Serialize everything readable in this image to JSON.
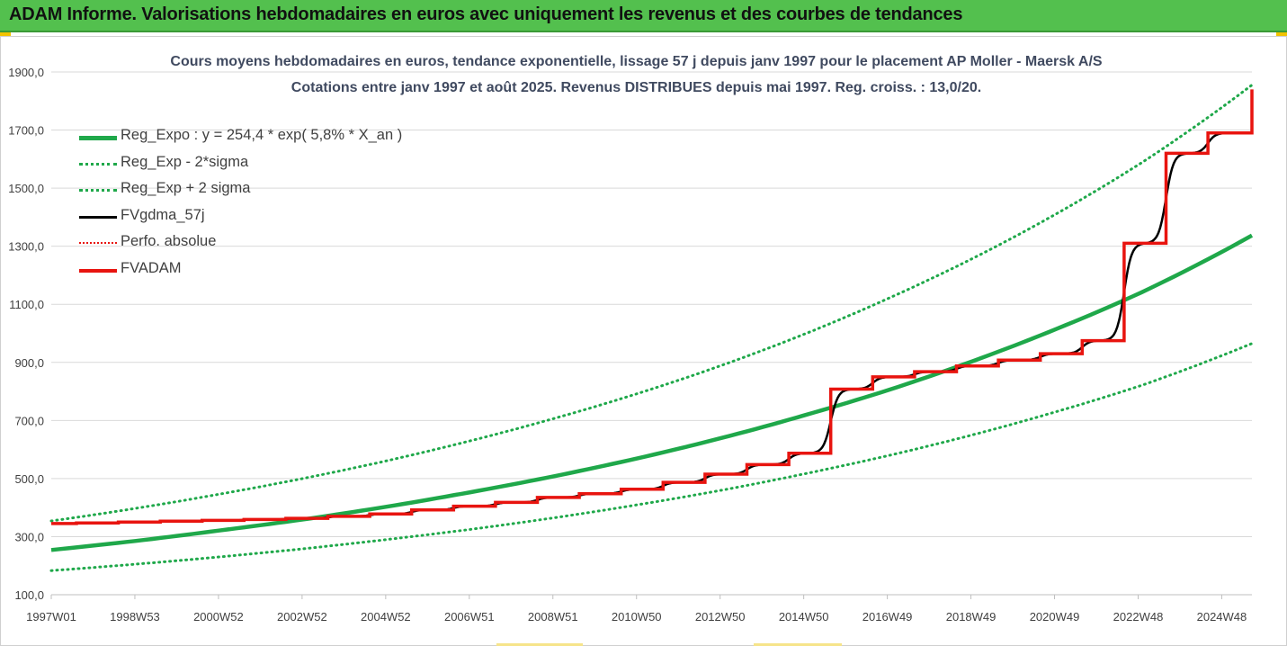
{
  "banner": {
    "title": "ADAM Informe. Valorisations hebdomadaires en euros avec uniquement les revenus et des courbes de tendances"
  },
  "colors": {
    "banner": "#53c04e",
    "reg_expo": "#1fa84a",
    "fvgdma": "#000000",
    "fvadam": "#e8140f",
    "perfo": "#e8140f"
  },
  "chart_data": {
    "type": "line",
    "title": "Cours moyens hebdomadaires en euros, tendance exponentielle, lissage 57 j depuis janv 1997 pour le placement AP Moller - Maersk A/S",
    "subtitle": "Cotations entre janv 1997 et août 2025.  Revenus DISTRIBUES depuis mai 1997. Reg. croiss. : 13,0/20.",
    "xlabel": "",
    "ylabel": "",
    "x_ticks": [
      "1997W01",
      "1998W53",
      "2000W52",
      "2002W52",
      "2004W52",
      "2006W51",
      "2008W51",
      "2010W50",
      "2012W50",
      "2014W50",
      "2016W49",
      "2018W49",
      "2020W49",
      "2022W48",
      "2024W48"
    ],
    "x_range": [
      1997.0,
      2025.65
    ],
    "y_ticks": [
      "100,0",
      "300,0",
      "500,0",
      "700,0",
      "900,0",
      "1100,0",
      "1300,0",
      "1500,0",
      "1700,0",
      "1900,0"
    ],
    "ylim": [
      100,
      1900
    ],
    "grid": "horizontal",
    "legend_position": "left",
    "legend": [
      {
        "label": "Reg_Expo : y = 254,4 * exp( 5,8% *  X_an )",
        "style": "solid",
        "color": "#1fa84a",
        "width": 5
      },
      {
        "label": "Reg_Exp - 2*sigma",
        "style": "dotted",
        "color": "#1fa84a",
        "width": 3
      },
      {
        "label": "Reg_Exp + 2 sigma",
        "style": "dotted",
        "color": "#1fa84a",
        "width": 3
      },
      {
        "label": "FVgdma_57j",
        "style": "solid",
        "color": "#000000",
        "width": 3
      },
      {
        "label": "Perfo. absolue",
        "style": "dotted",
        "color": "#e8140f",
        "width": 2
      },
      {
        "label": "FVADAM",
        "style": "solid",
        "color": "#e8140f",
        "width": 4
      }
    ],
    "series": [
      {
        "name": "Reg_Expo : y = 254,4 * exp( 5,8% *  X_an )",
        "x": [
          1997.0,
          1999.0,
          2001.0,
          2003.0,
          2005.0,
          2007.0,
          2009.0,
          2011.0,
          2013.0,
          2015.0,
          2017.0,
          2019.0,
          2021.0,
          2023.0,
          2025.65
        ],
        "values": [
          254,
          285,
          321,
          359,
          403,
          453,
          508,
          570,
          640,
          719,
          806,
          905,
          1016,
          1140,
          1337
        ]
      },
      {
        "name": "Reg_Exp - 2*sigma",
        "x": [
          1997.0,
          1999.0,
          2001.0,
          2003.0,
          2005.0,
          2007.0,
          2009.0,
          2011.0,
          2013.0,
          2015.0,
          2017.0,
          2019.0,
          2021.0,
          2023.0,
          2025.65
        ],
        "values": [
          183,
          205,
          230,
          258,
          290,
          325,
          365,
          410,
          460,
          517,
          580,
          651,
          731,
          820,
          965
        ]
      },
      {
        "name": "Reg_Exp + 2 sigma",
        "x": [
          1997.0,
          1999.0,
          2001.0,
          2003.0,
          2005.0,
          2007.0,
          2009.0,
          2011.0,
          2013.0,
          2015.0,
          2017.0,
          2019.0,
          2021.0,
          2023.0,
          2025.65
        ],
        "values": [
          354,
          397,
          446,
          500,
          561,
          630,
          707,
          793,
          890,
          999,
          1122,
          1259,
          1413,
          1586,
          1855
        ]
      },
      {
        "name": "FVADAM",
        "step_x": [
          1997.0,
          1997.6,
          1998.6,
          1999.6,
          2000.6,
          2001.6,
          2002.6,
          2003.6,
          2004.6,
          2005.6,
          2006.6,
          2007.6,
          2008.6,
          2009.6,
          2010.6,
          2011.6,
          2012.6,
          2013.6,
          2014.6,
          2015.6,
          2016.6,
          2017.6,
          2018.6,
          2019.6,
          2020.6,
          2021.6,
          2022.6,
          2023.6,
          2024.6,
          2025.65
        ],
        "step_values": [
          345,
          347,
          350,
          353,
          356,
          359,
          363,
          370,
          378,
          392,
          405,
          418,
          435,
          448,
          463,
          487,
          515,
          548,
          587,
          808,
          850,
          868,
          888,
          908,
          930,
          975,
          1310,
          1620,
          1690,
          1840
        ]
      },
      {
        "name": "FVgdma_57j",
        "follows": "FVADAM",
        "smoothing": "57 j"
      },
      {
        "name": "Perfo. absolue",
        "values": []
      }
    ]
  }
}
